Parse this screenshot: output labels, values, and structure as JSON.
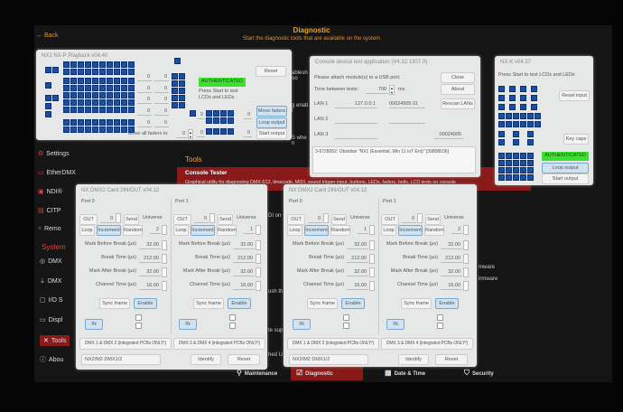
{
  "header": {
    "back": "Back",
    "title": "Diagnostic",
    "subtitle": "Start the diagnostic tools that are available on the system"
  },
  "sidebar": {
    "items": [
      {
        "label": "Settings",
        "icon": "settings-icon"
      },
      {
        "label": "EtherDMX",
        "icon": "etherdmx-icon"
      },
      {
        "label": "NDI®",
        "icon": "ndi-icon"
      },
      {
        "label": "CITP",
        "icon": "citp-icon"
      },
      {
        "label": "Remo",
        "icon": "remote-icon"
      }
    ],
    "system_header": "System",
    "system_items": [
      {
        "label": "DMX",
        "icon": "dmx-icon"
      },
      {
        "label": "DMX",
        "icon": "dmx-output-icon"
      },
      {
        "label": "I/O S",
        "icon": "io-icon"
      },
      {
        "label": "Displ",
        "icon": "display-icon"
      },
      {
        "label": "Tools",
        "icon": "tools-icon",
        "active": true
      },
      {
        "label": "Abou",
        "icon": "info-icon"
      }
    ]
  },
  "main": {
    "tools_header": "Tools",
    "console_tester": {
      "title": "Console Tester",
      "desc": "Graphical utility for diagnosing DMX-512, timecode, MIDI, sound trigger input, buttons, LEDs, faders, bells, LCD texts on console"
    },
    "bg_fragments": [
      "ableshoo",
      "g enabl",
      "S when",
      "DI on",
      "mware",
      "ush th",
      "irmware",
      "te sup",
      "hed U"
    ]
  },
  "bottom_nav": [
    {
      "label": "Maintenance",
      "icon": "wrench-icon"
    },
    {
      "label": "Diagnostic",
      "icon": "diagnostic-icon",
      "active": true
    },
    {
      "label": "Date & Time",
      "icon": "calendar-clock-icon"
    },
    {
      "label": "Security",
      "icon": "shield-icon"
    }
  ],
  "playback": {
    "title": "NX1 NX-P Playback v04.40",
    "fader_values": [
      "0",
      "0",
      "0",
      "0",
      "0",
      "0",
      "0",
      "0",
      "0",
      "0"
    ],
    "auth": "AUTHENTICATED",
    "info": "Press Start to test LCDs and LEDs",
    "reset": "Reset",
    "move_faders": "Move faders",
    "loop_output": "Loop output",
    "start_output": "Start output",
    "move_all_label": "Move all faders to",
    "move_all_value": "0",
    "side_values": [
      "0",
      "0",
      "0",
      "0"
    ]
  },
  "console_app": {
    "title": "Console device test application (V4.32.1307.0)",
    "message": "Please attach module(s) to a USB port.",
    "time_label": "Time between tests:",
    "time_value": "700",
    "time_unit": "ms",
    "close": "Close",
    "about": "About",
    "rescan": "Rescan LANs",
    "lans": [
      {
        "label": "LAN 1",
        "ip": "127.0.0.1",
        "serial": "00024905 01"
      },
      {
        "label": "LAN 2",
        "ip": "",
        "serial": ""
      },
      {
        "label": "LAN 3",
        "ip": "",
        "serial": "00024905"
      }
    ],
    "log": "3-6728052: Obsidian \"NX1 (Essential, Win 11 IoT Ent)\" [39808036]"
  },
  "nxk": {
    "title": "NX-K v04.37",
    "info": "Press Start to test LCDs and LEDs",
    "reset_input": "Reset input",
    "key_caps": "Key caps",
    "auth": "AUTHENTICATED",
    "loop_output": "Loop output",
    "start_output": "Start output"
  },
  "dmx_windows": [
    {
      "title": "NX DMX2 Card 2IN/OUT v04.12",
      "ports": [
        {
          "name": "Port 0",
          "out": "OUT",
          "value": "0",
          "send": "Send",
          "universe_label": "Universe",
          "universe": "2",
          "loop": "Loop",
          "increment": "Increment",
          "random": "Random",
          "mbb_label": "Mark Before Break (µs)",
          "mbb": "32.00",
          "bt_label": "Break Time (µs)",
          "bt": "212.00",
          "mab_label": "Mark After Break (µs)",
          "mab": "32.00",
          "ct_label": "Channel Time (µs)",
          "ct": "16.00",
          "sync": "Sync frame",
          "enable": "Enable",
          "in": "IN",
          "group": "DMX 1 & DMX 2 (integrated PCBs ONLY!)"
        },
        {
          "name": "Port 1",
          "out": "OUT",
          "value": "0",
          "send": "Send",
          "universe_label": "Universe",
          "universe": "1",
          "loop": "Loop",
          "increment": "Increment",
          "random": "Random",
          "mbb_label": "Mark Before Break (µs)",
          "mbb": "32.00",
          "bt_label": "Break Time (µs)",
          "bt": "212.00",
          "mab_label": "Mark After Break (µs)",
          "mab": "32.00",
          "ct_label": "Channel Time (µs)",
          "ct": "16.00",
          "sync": "Sync frame",
          "enable": "Enable",
          "in": "IN",
          "group": "DMX 3 & DMX 4 (integrated PCBs ONLY!)"
        }
      ],
      "device": "NX2/M2 DMX1/2",
      "identify": "Identify",
      "reset": "Reset"
    },
    {
      "title": "NX DMX2 Card 2IN/OUT v04.12",
      "ports": [
        {
          "name": "Port 0",
          "out": "OUT",
          "value": "0",
          "send": "Send",
          "universe_label": "Universe",
          "universe": "1",
          "loop": "Loop",
          "increment": "Increment",
          "random": "Random",
          "mbb_label": "Mark Before Break (µs)",
          "mbb": "32.00",
          "bt_label": "Break Time (µs)",
          "bt": "212.00",
          "mab_label": "Mark After Break (µs)",
          "mab": "32.00",
          "ct_label": "Channel Time (µs)",
          "ct": "16.00",
          "sync": "Sync frame",
          "enable": "Enable",
          "in": "IN",
          "group": "DMX 1 & DMX 2 (integrated PCBs ONLY!)"
        },
        {
          "name": "Port 1",
          "out": "OUT",
          "value": "0",
          "send": "Send",
          "universe_label": "Universe",
          "universe": "2",
          "loop": "Loop",
          "increment": "Increment",
          "random": "Random",
          "mbb_label": "Mark Before Break (µs)",
          "mbb": "32.00",
          "bt_label": "Break Time (µs)",
          "bt": "212.00",
          "mab_label": "Mark After Break (µs)",
          "mab": "32.00",
          "ct_label": "Channel Time (µs)",
          "ct": "16.00",
          "sync": "Sync frame",
          "enable": "Enable",
          "in": "IN",
          "group": "DMX 3 & DMX 4 (integrated PCBs ONLY!)"
        }
      ],
      "device": "NX2/M2 DMX1/2",
      "identify": "Identify",
      "reset": "Reset"
    }
  ],
  "colors": {
    "accent": "#f0a020",
    "active_red": "#8a1a1a",
    "led_blue": "#1a4fa0",
    "auth_green": "#3ee030"
  }
}
